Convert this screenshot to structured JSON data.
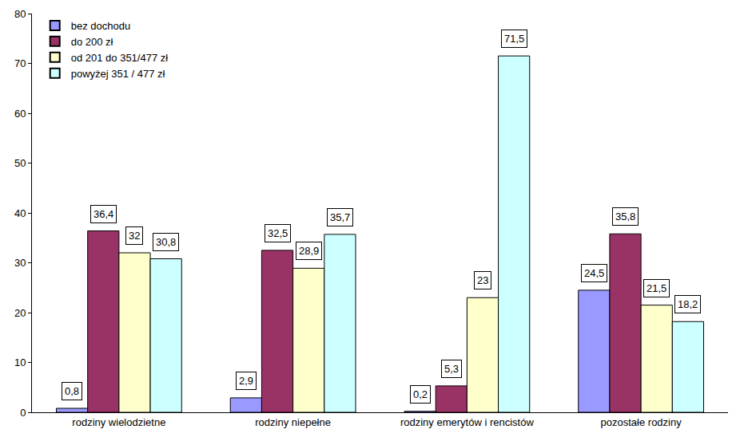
{
  "chart_data": {
    "type": "bar",
    "categories": [
      "rodziny wielodzietne",
      "rodziny niepełne",
      "rodziny emerytów i rencistów",
      "pozostałe rodziny"
    ],
    "series": [
      {
        "name": "bez dochodu",
        "color": "#9999ff",
        "values": [
          0.8,
          2.9,
          0.2,
          24.5
        ],
        "value_labels": [
          "0,8",
          "2,9",
          "0,2",
          "24,5"
        ]
      },
      {
        "name": "do 200 zł",
        "color": "#993366",
        "values": [
          36.4,
          32.5,
          5.3,
          35.8
        ],
        "value_labels": [
          "36,4",
          "32,5",
          "5,3",
          "35,8"
        ]
      },
      {
        "name": "od 201 do 351/477 zł",
        "color": "#ffffcc",
        "values": [
          32,
          28.9,
          23,
          21.5
        ],
        "value_labels": [
          "32",
          "28,9",
          "23",
          "21,5"
        ]
      },
      {
        "name": "powyżej 351 / 477 zł",
        "color": "#ccffff",
        "values": [
          30.8,
          35.7,
          71.5,
          18.2
        ],
        "value_labels": [
          "30,8",
          "35,7",
          "71,5",
          "18,2"
        ]
      }
    ],
    "ylim": [
      0,
      80
    ],
    "yticks": [
      0,
      10,
      20,
      30,
      40,
      50,
      60,
      70,
      80
    ],
    "grid": false,
    "legend": "top-left",
    "data_labels": true
  }
}
